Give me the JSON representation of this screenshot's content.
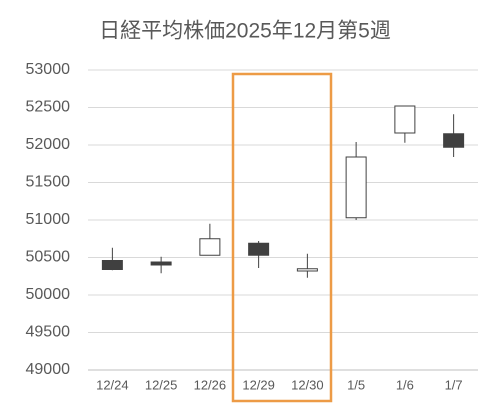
{
  "chart_data": {
    "type": "candlestick",
    "title": "日経平均株価2025年12月第5週",
    "categories": [
      "12/24",
      "12/25",
      "12/26",
      "12/29",
      "12/30",
      "1/5",
      "1/6",
      "1/7"
    ],
    "open": [
      50460,
      50440,
      50530,
      50690,
      50320,
      51030,
      52160,
      52150
    ],
    "high": [
      50630,
      50510,
      50950,
      50720,
      50550,
      52040,
      52520,
      52410
    ],
    "low": [
      50330,
      50290,
      50530,
      50360,
      50230,
      51000,
      52030,
      51840
    ],
    "close": [
      50340,
      50400,
      50750,
      50530,
      50350,
      51840,
      52520,
      51970
    ],
    "up_color": "#ffffff",
    "down_color": "#404040",
    "line_color": "#404040",
    "ylim": [
      49000,
      53000
    ],
    "yticks": [
      49000,
      49500,
      50000,
      50500,
      51000,
      51500,
      52000,
      52500,
      53000
    ],
    "grid": true
  }
}
